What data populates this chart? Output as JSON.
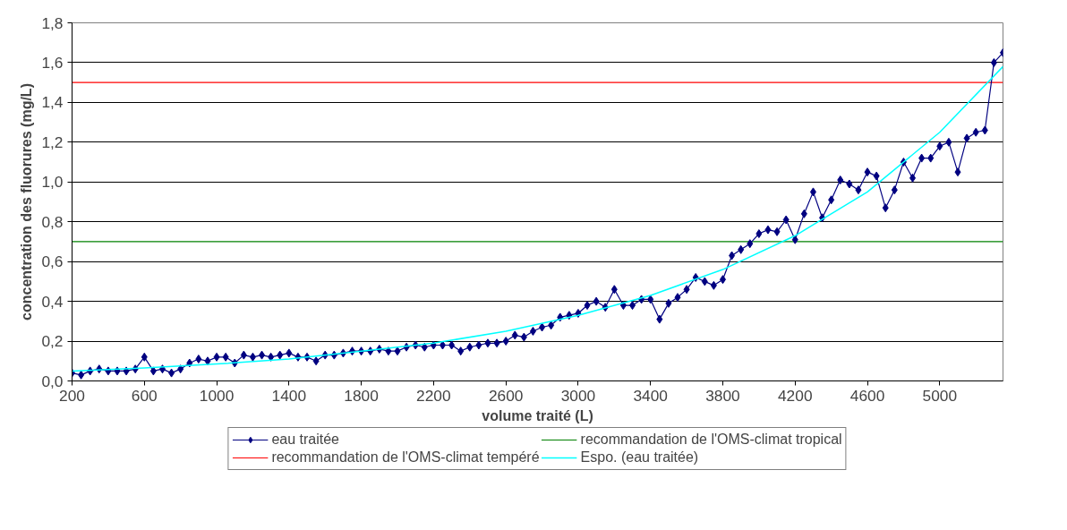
{
  "chart_data": {
    "type": "line",
    "xlabel": "volume traité (L)",
    "ylabel": "concentration des fluorures (mg/L)",
    "xlim": [
      200,
      5350
    ],
    "ylim": [
      0,
      1.8
    ],
    "xticks": [
      200,
      600,
      1000,
      1400,
      1800,
      2200,
      2600,
      3000,
      3400,
      3800,
      4200,
      4600,
      5000
    ],
    "yticks": [
      {
        "value": 0,
        "label": "0,0"
      },
      {
        "value": 0.2,
        "label": "0,2"
      },
      {
        "value": 0.4,
        "label": "0,4"
      },
      {
        "value": 0.6,
        "label": "0,6"
      },
      {
        "value": 0.8,
        "label": "0,8"
      },
      {
        "value": 1.0,
        "label": "1,0"
      },
      {
        "value": 1.2,
        "label": "1,2"
      },
      {
        "value": 1.4,
        "label": "1,4"
      },
      {
        "value": 1.6,
        "label": "1,6"
      },
      {
        "value": 1.8,
        "label": "1,8"
      }
    ],
    "grid": "y",
    "legend": "bottom",
    "x": [
      200,
      250,
      300,
      350,
      400,
      450,
      500,
      550,
      600,
      650,
      700,
      750,
      800,
      850,
      900,
      950,
      1000,
      1050,
      1100,
      1150,
      1200,
      1250,
      1300,
      1350,
      1400,
      1450,
      1500,
      1550,
      1600,
      1650,
      1700,
      1750,
      1800,
      1850,
      1900,
      1950,
      2000,
      2050,
      2100,
      2150,
      2200,
      2250,
      2300,
      2350,
      2400,
      2450,
      2500,
      2550,
      2600,
      2650,
      2700,
      2750,
      2800,
      2850,
      2900,
      2950,
      3000,
      3050,
      3100,
      3150,
      3200,
      3250,
      3300,
      3350,
      3400,
      3450,
      3500,
      3550,
      3600,
      3650,
      3700,
      3750,
      3800,
      3850,
      3900,
      3950,
      4000,
      4050,
      4100,
      4150,
      4200,
      4250,
      4300,
      4350,
      4400,
      4450,
      4500,
      4550,
      4600,
      4650,
      4700,
      4750,
      4800,
      4850,
      4900,
      4950,
      5000,
      5050,
      5100,
      5150,
      5200,
      5250,
      5300,
      5350
    ],
    "series": [
      {
        "name": "eau traitée",
        "color": "#000080",
        "marker": "diamond",
        "values": [
          0.04,
          0.03,
          0.05,
          0.06,
          0.05,
          0.05,
          0.05,
          0.06,
          0.12,
          0.05,
          0.06,
          0.04,
          0.06,
          0.09,
          0.11,
          0.1,
          0.12,
          0.12,
          0.09,
          0.13,
          0.12,
          0.13,
          0.12,
          0.13,
          0.14,
          0.12,
          0.12,
          0.1,
          0.13,
          0.13,
          0.14,
          0.15,
          0.15,
          0.15,
          0.16,
          0.15,
          0.15,
          0.17,
          0.18,
          0.17,
          0.18,
          0.18,
          0.18,
          0.15,
          0.17,
          0.18,
          0.19,
          0.19,
          0.2,
          0.23,
          0.22,
          0.25,
          0.27,
          0.28,
          0.32,
          0.33,
          0.34,
          0.38,
          0.4,
          0.37,
          0.46,
          0.38,
          0.38,
          0.41,
          0.41,
          0.31,
          0.39,
          0.42,
          0.46,
          0.52,
          0.5,
          0.48,
          0.51,
          0.63,
          0.66,
          0.69,
          0.74,
          0.76,
          0.75,
          0.81,
          0.71,
          0.84,
          0.95,
          0.82,
          0.91,
          1.01,
          0.99,
          0.96,
          1.05,
          1.03,
          0.87,
          0.96,
          1.1,
          1.02,
          1.12,
          1.12,
          1.18,
          1.2,
          1.05,
          1.22,
          1.25,
          1.26,
          1.6,
          1.65
        ]
      },
      {
        "name": "Espo. (eau traitée)",
        "color": "#00ffff",
        "marker": "none",
        "x": [
          200,
          600,
          1000,
          1400,
          1800,
          2200,
          2600,
          3000,
          3400,
          3800,
          4200,
          4600,
          5000,
          5350
        ],
        "values": [
          0.05,
          0.065,
          0.085,
          0.11,
          0.15,
          0.19,
          0.25,
          0.33,
          0.43,
          0.56,
          0.73,
          0.95,
          1.25,
          1.58
        ]
      }
    ],
    "ref_lines": [
      {
        "axis": "y",
        "value": 0.7,
        "label": "recommandation de l'OMS-climat tropical",
        "color": "#008000"
      },
      {
        "axis": "y",
        "value": 1.5,
        "label": "recommandation de l'OMS-climat tempéré",
        "color": "#ff0000"
      }
    ]
  }
}
